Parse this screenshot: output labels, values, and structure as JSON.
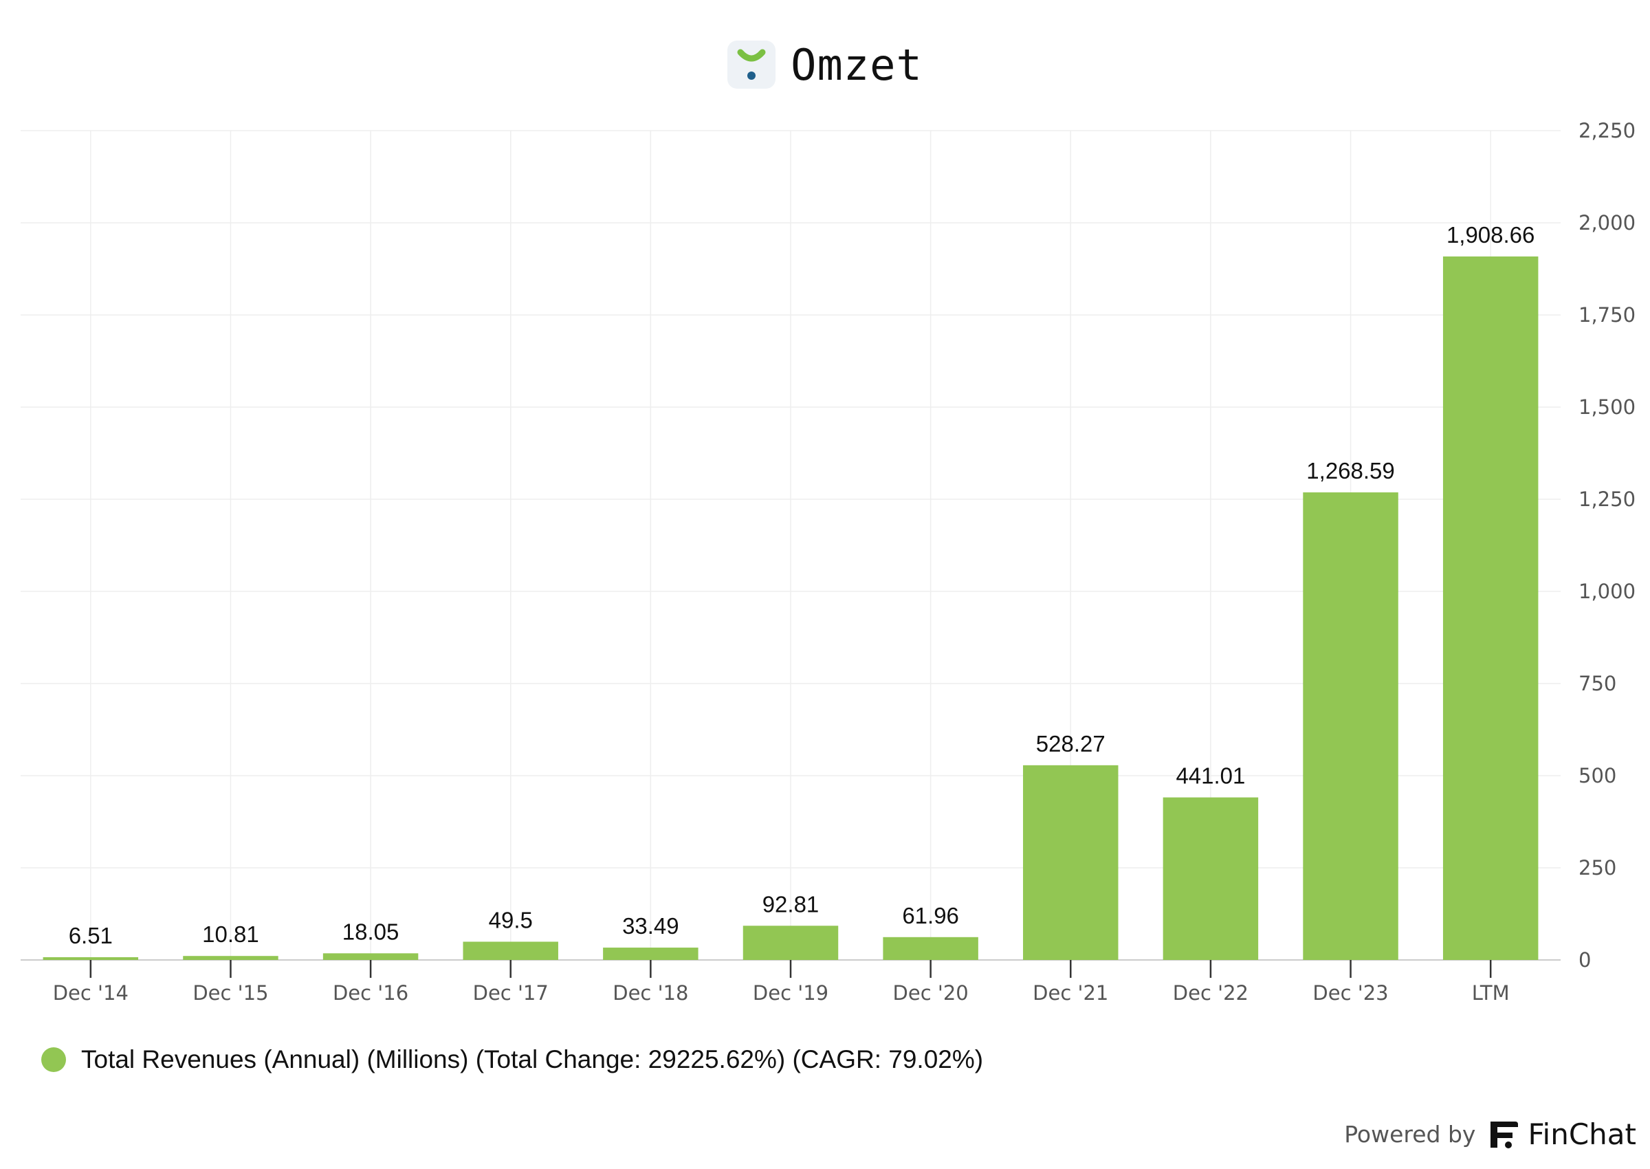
{
  "header": {
    "title": "Omzet",
    "logo_icon": "omzet-logo-icon"
  },
  "colors": {
    "bar": "#92c653",
    "grid": "#eeeeee",
    "axis": "#cccccc",
    "logo_green": "#7bc043",
    "logo_blue": "#1f5f8b"
  },
  "chart_data": {
    "type": "bar",
    "categories": [
      "Dec '14",
      "Dec '15",
      "Dec '16",
      "Dec '17",
      "Dec '18",
      "Dec '19",
      "Dec '20",
      "Dec '21",
      "Dec '22",
      "Dec '23",
      "LTM"
    ],
    "series": [
      {
        "name": "Total Revenues (Annual) (Millions)",
        "values": [
          6.51,
          10.81,
          18.05,
          49.5,
          33.49,
          92.81,
          61.96,
          528.27,
          441.01,
          1268.59,
          1908.66
        ],
        "labels": [
          "6.51",
          "10.81",
          "18.05",
          "49.5",
          "33.49",
          "92.81",
          "61.96",
          "528.27",
          "441.01",
          "1,268.59",
          "1,908.66"
        ]
      }
    ],
    "y_ticks": [
      0,
      250,
      500,
      750,
      1000,
      1250,
      1500,
      1750,
      2000,
      2250
    ],
    "y_tick_labels": [
      "0",
      "250",
      "500",
      "750",
      "1,000",
      "1,250",
      "1,500",
      "1,750",
      "2,000",
      "2,250"
    ],
    "ylim": [
      0,
      2250
    ],
    "y_axis_side": "right",
    "grid": true,
    "legend_position": "bottom-left"
  },
  "legend": {
    "text": "Total Revenues (Annual) (Millions) (Total Change: 29225.62%) (CAGR: 79.02%)"
  },
  "footer": {
    "powered_by": "Powered by",
    "brand": "FinChat",
    "brand_icon": "finchat-logo-icon"
  }
}
